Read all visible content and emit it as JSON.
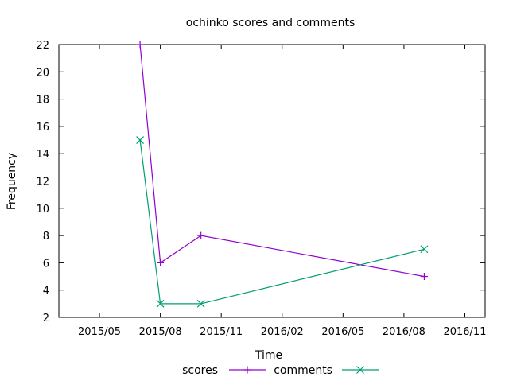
{
  "chart_data": {
    "type": "line",
    "title": "ochinko scores and comments",
    "xlabel": "Time",
    "ylabel": "Frequency",
    "x_ticks": [
      "2015/05",
      "2015/08",
      "2015/11",
      "2016/02",
      "2016/05",
      "2016/08",
      "2016/11"
    ],
    "y_ticks": [
      2,
      4,
      6,
      8,
      10,
      12,
      14,
      16,
      18,
      20,
      22
    ],
    "ylim": [
      2,
      22
    ],
    "xlim": [
      "2015-03",
      "2016-12"
    ],
    "grid": false,
    "legend_position": "bottom",
    "series": [
      {
        "name": "scores",
        "color": "#9400d3",
        "marker": "plus",
        "points": [
          {
            "x": "2015-07",
            "y": 22
          },
          {
            "x": "2015-08",
            "y": 6
          },
          {
            "x": "2015-10",
            "y": 8
          },
          {
            "x": "2016-09",
            "y": 5
          }
        ]
      },
      {
        "name": "comments",
        "color": "#009e73",
        "marker": "cross",
        "points": [
          {
            "x": "2015-07",
            "y": 15
          },
          {
            "x": "2015-08",
            "y": 3
          },
          {
            "x": "2015-10",
            "y": 3
          },
          {
            "x": "2016-09",
            "y": 7
          }
        ]
      }
    ]
  }
}
